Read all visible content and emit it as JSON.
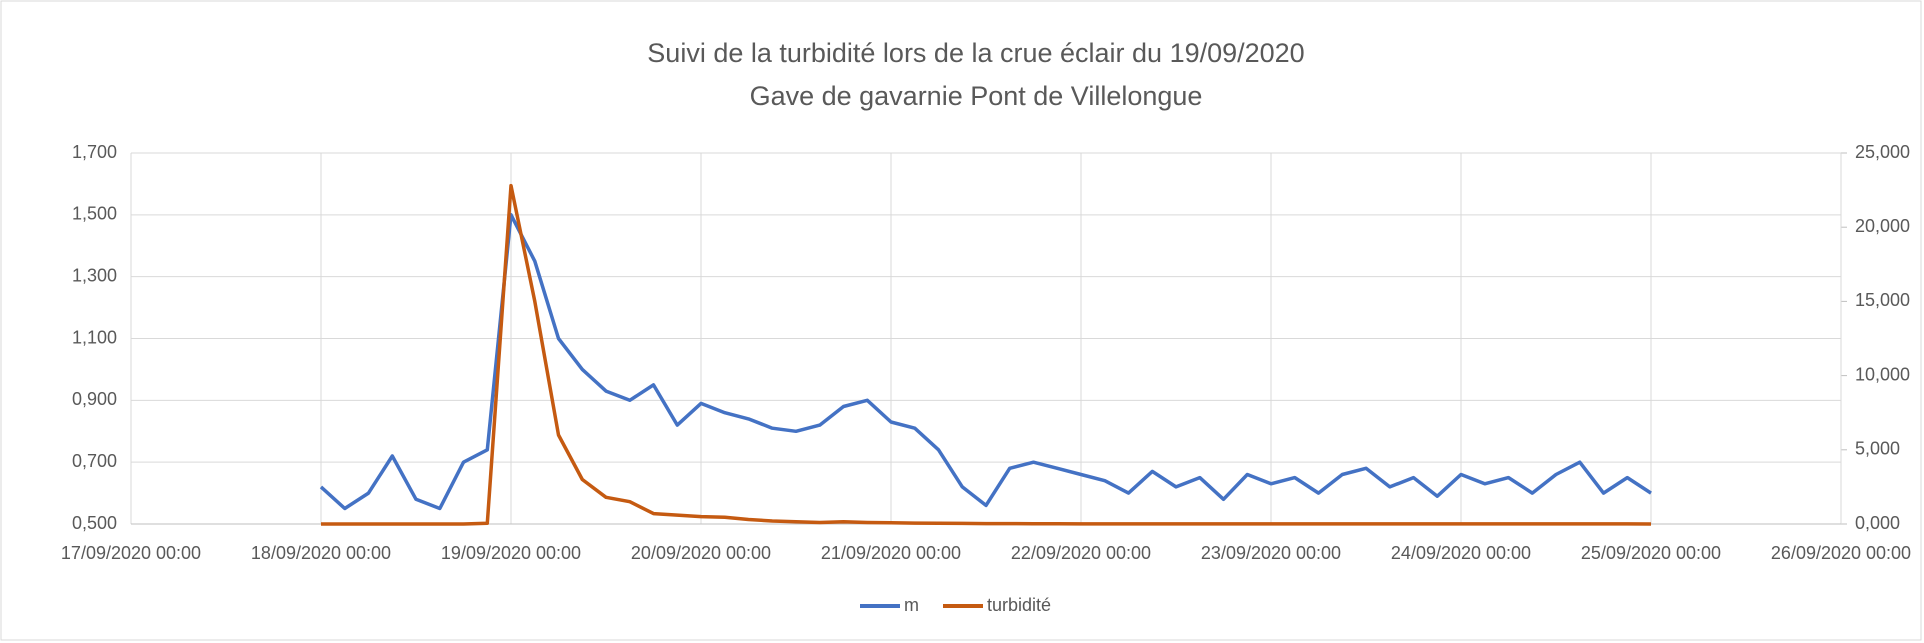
{
  "chart_data": {
    "type": "line",
    "title": "Suivi de la turbidité lors de la crue éclair du 19/09/2020",
    "subtitle": "Gave de gavarnie Pont de Villelongue",
    "x": [
      "18/09/2020 00:00",
      "18/09/2020 03:00",
      "18/09/2020 06:00",
      "18/09/2020 09:00",
      "18/09/2020 12:00",
      "18/09/2020 15:00",
      "18/09/2020 18:00",
      "18/09/2020 21:00",
      "19/09/2020 00:00",
      "19/09/2020 03:00",
      "19/09/2020 06:00",
      "19/09/2020 09:00",
      "19/09/2020 12:00",
      "19/09/2020 15:00",
      "19/09/2020 18:00",
      "19/09/2020 21:00",
      "20/09/2020 00:00",
      "20/09/2020 03:00",
      "20/09/2020 06:00",
      "20/09/2020 09:00",
      "20/09/2020 12:00",
      "20/09/2020 15:00",
      "20/09/2020 18:00",
      "20/09/2020 21:00",
      "21/09/2020 00:00",
      "21/09/2020 03:00",
      "21/09/2020 06:00",
      "21/09/2020 09:00",
      "21/09/2020 12:00",
      "21/09/2020 15:00",
      "21/09/2020 18:00",
      "21/09/2020 21:00",
      "22/09/2020 00:00",
      "22/09/2020 03:00",
      "22/09/2020 06:00",
      "22/09/2020 09:00",
      "22/09/2020 12:00",
      "22/09/2020 15:00",
      "22/09/2020 18:00",
      "22/09/2020 21:00",
      "23/09/2020 00:00",
      "23/09/2020 03:00",
      "23/09/2020 06:00",
      "23/09/2020 09:00",
      "23/09/2020 12:00",
      "23/09/2020 15:00",
      "23/09/2020 18:00",
      "23/09/2020 21:00",
      "24/09/2020 00:00",
      "24/09/2020 03:00",
      "24/09/2020 06:00",
      "24/09/2020 09:00",
      "24/09/2020 12:00",
      "24/09/2020 15:00",
      "24/09/2020 18:00",
      "24/09/2020 21:00",
      "25/09/2020 00:00"
    ],
    "series": [
      {
        "name": "m",
        "color": "#4472c4",
        "axis": "y",
        "values": [
          0.62,
          0.55,
          0.6,
          0.72,
          0.58,
          0.55,
          0.7,
          0.74,
          1.5,
          1.35,
          1.1,
          1.0,
          0.93,
          0.9,
          0.95,
          0.82,
          0.89,
          0.86,
          0.84,
          0.81,
          0.8,
          0.82,
          0.88,
          0.9,
          0.83,
          0.81,
          0.74,
          0.62,
          0.56,
          0.68,
          0.7,
          0.68,
          0.66,
          0.64,
          0.6,
          0.67,
          0.62,
          0.65,
          0.58,
          0.66,
          0.63,
          0.65,
          0.6,
          0.66,
          0.68,
          0.62,
          0.65,
          0.59,
          0.66,
          0.63,
          0.65,
          0.6,
          0.66,
          0.7,
          0.6,
          0.65,
          0.6
        ]
      },
      {
        "name": "turbidité",
        "color": "#c55a11",
        "axis": "y2",
        "values": [
          0,
          0,
          0,
          0,
          0,
          0,
          0,
          50,
          22800,
          15000,
          6000,
          3000,
          1800,
          1500,
          700,
          600,
          500,
          450,
          300,
          200,
          150,
          100,
          150,
          100,
          80,
          60,
          50,
          40,
          30,
          30,
          20,
          20,
          10,
          10,
          10,
          10,
          10,
          10,
          10,
          10,
          10,
          10,
          10,
          10,
          10,
          10,
          10,
          10,
          10,
          10,
          10,
          10,
          10,
          10,
          10,
          10,
          0
        ]
      }
    ],
    "xlim": [
      "17/09/2020 00:00",
      "26/09/2020 00:00"
    ],
    "xticks": [
      "17/09/2020 00:00",
      "18/09/2020 00:00",
      "19/09/2020 00:00",
      "20/09/2020 00:00",
      "21/09/2020 00:00",
      "22/09/2020 00:00",
      "23/09/2020 00:00",
      "24/09/2020 00:00",
      "25/09/2020 00:00",
      "26/09/2020 00:00"
    ],
    "ylim": [
      0.5,
      1.7
    ],
    "yticks": [
      {
        "value": 0.5,
        "label": "0,500"
      },
      {
        "value": 0.7,
        "label": "0,700"
      },
      {
        "value": 0.9,
        "label": "0,900"
      },
      {
        "value": 1.1,
        "label": "1,100"
      },
      {
        "value": 1.3,
        "label": "1,300"
      },
      {
        "value": 1.5,
        "label": "1,500"
      },
      {
        "value": 1.7,
        "label": "1,700"
      }
    ],
    "y2lim": [
      0,
      25000
    ],
    "y2ticks": [
      {
        "value": 0,
        "label": "0,000"
      },
      {
        "value": 5000,
        "label": "5,000"
      },
      {
        "value": 10000,
        "label": "10,000"
      },
      {
        "value": 15000,
        "label": "15,000"
      },
      {
        "value": 20000,
        "label": "20,000"
      },
      {
        "value": 25000,
        "label": "25,000"
      }
    ],
    "grid": true,
    "legend": "bottom"
  }
}
